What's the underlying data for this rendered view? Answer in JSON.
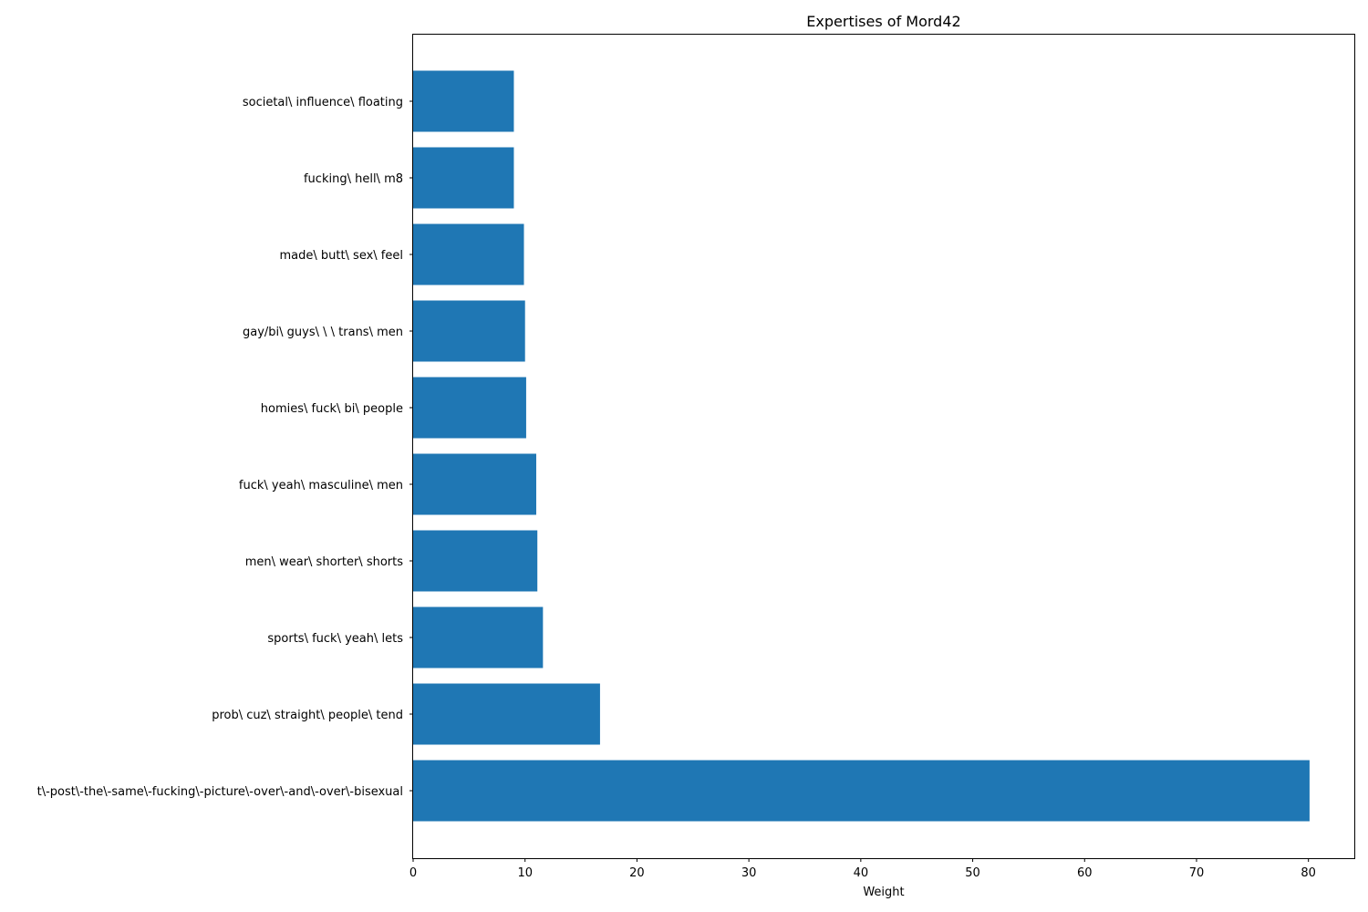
{
  "chart_data": {
    "type": "bar",
    "orientation": "horizontal",
    "title": "Expertises of Mord42",
    "xlabel": "Weight",
    "ylabel": "",
    "xlim": [
      0,
      84.1
    ],
    "xticks": [
      0,
      10,
      20,
      30,
      40,
      50,
      60,
      70,
      80
    ],
    "grid": false,
    "bar_color": "#1f77b4",
    "categories": [
      "t\\-post\\-the\\-same\\-fucking\\-picture\\-over\\-and\\-over\\-bisexual",
      "prob\\ cuz\\ straight\\ people\\ tend",
      "sports\\ fuck\\ yeah\\ lets",
      "men\\ wear\\ shorter\\ shorts",
      "fuck\\ yeah\\ masculine\\ men",
      "homies\\ fuck\\ bi\\ people",
      "gay/bi\\ guys\\ \\ \\ trans\\ men",
      "made\\ butt\\ sex\\ feel",
      "fucking\\ hell\\ m8",
      "societal\\ influence\\ floating"
    ],
    "values": [
      80.1,
      16.7,
      11.6,
      11.1,
      11.0,
      10.1,
      10.0,
      9.9,
      9.0,
      9.0
    ]
  }
}
